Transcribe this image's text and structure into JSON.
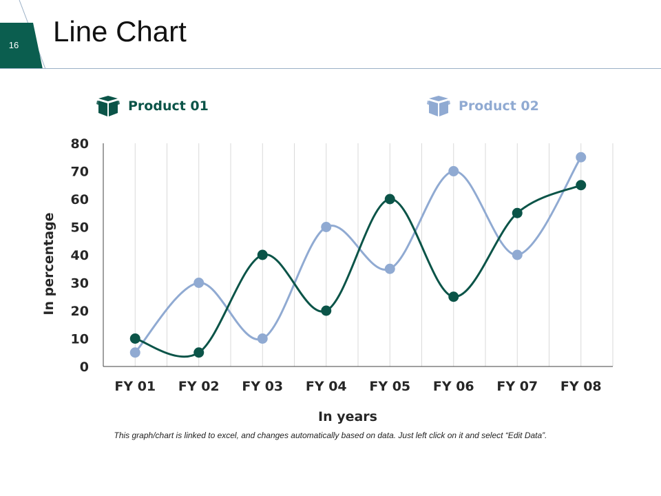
{
  "slide": {
    "number": "16",
    "title": "Line Chart"
  },
  "colors": {
    "product1": "#0b5448",
    "product2": "#90aad2",
    "header_line": "#9ab0c6",
    "badge": "#0b5e4f"
  },
  "legend": {
    "items": [
      {
        "label": "Product 01",
        "icon": "box-icon",
        "color": "#0b5448"
      },
      {
        "label": "Product 02",
        "icon": "box-icon",
        "color": "#90aad2"
      }
    ]
  },
  "chart_data": {
    "type": "line",
    "title": "",
    "xlabel": "In years",
    "ylabel": "In percentage",
    "categories": [
      "FY 01",
      "FY 02",
      "FY 03",
      "FY 04",
      "FY 05",
      "FY 06",
      "FY 07",
      "FY 08"
    ],
    "series": [
      {
        "name": "Product 01",
        "values": [
          10,
          5,
          40,
          20,
          60,
          25,
          55,
          65
        ]
      },
      {
        "name": "Product 02",
        "values": [
          5,
          30,
          10,
          50,
          35,
          70,
          40,
          75
        ]
      }
    ],
    "ylim": [
      0,
      80
    ],
    "yticks": [
      0,
      10,
      20,
      30,
      40,
      50,
      60,
      70,
      80
    ],
    "smooth": true,
    "grid": "vertical",
    "legend_position": "top"
  },
  "footnote": "This graph/chart is linked to excel, and changes automatically based on data. Just left click on it and select “Edit Data”."
}
